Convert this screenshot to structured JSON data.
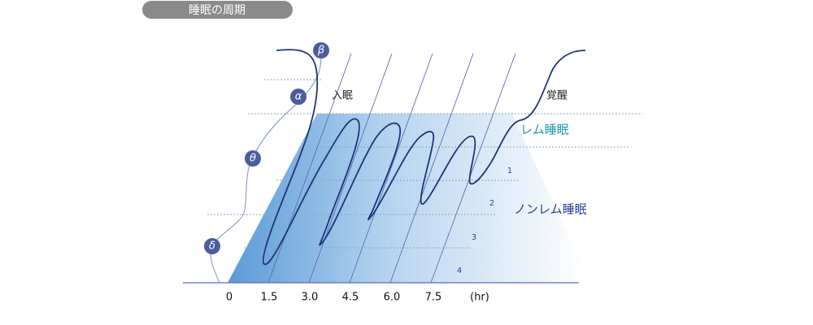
{
  "header": {
    "title": "睡眠の周期"
  },
  "waves": [
    "β",
    "α",
    "θ",
    "δ"
  ],
  "labels": {
    "sleep_onset": "入眠",
    "awakening": "覚醒",
    "rem": "レム睡眠",
    "non_rem": "ノンレム睡眠"
  },
  "stages": [
    "1",
    "2",
    "3",
    "4"
  ],
  "axis": {
    "ticks": [
      "0",
      "1.5",
      "3.0",
      "4.5",
      "6.0",
      "7.5"
    ],
    "unit": "(hr)"
  }
}
